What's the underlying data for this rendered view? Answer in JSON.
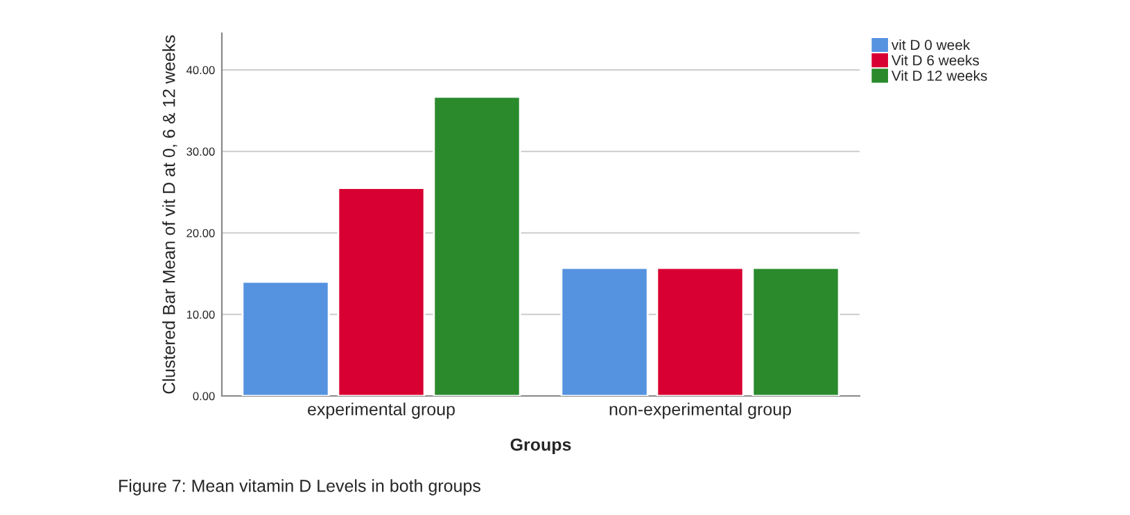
{
  "chart_data": {
    "type": "bar",
    "xlabel": "Groups",
    "ylabel": "Clustered Bar Mean of vit D at 0, 6 & 12 weeks",
    "categories": [
      "experimental group",
      "non-experimental group"
    ],
    "series": [
      {
        "name": "vit D 0 week",
        "color": "#5592e0",
        "values": [
          14.0,
          15.7
        ]
      },
      {
        "name": "Vit D 6 weeks",
        "color": "#d80032",
        "values": [
          25.5,
          15.7
        ]
      },
      {
        "name": "Vit D 12 weeks",
        "color": "#2a8a2c",
        "values": [
          36.7,
          15.7
        ]
      }
    ],
    "ylim": [
      0,
      44.5
    ],
    "yticks": [
      {
        "value": 0,
        "label": "0.00"
      },
      {
        "value": 10,
        "label": "10.00"
      },
      {
        "value": 20,
        "label": "20.00"
      },
      {
        "value": 30,
        "label": "30.00"
      },
      {
        "value": 40,
        "label": "40.00"
      }
    ],
    "grid": "y",
    "legend": "top right",
    "annotations": [
      "Figure 7: Mean vitamin D Levels in both groups"
    ]
  }
}
